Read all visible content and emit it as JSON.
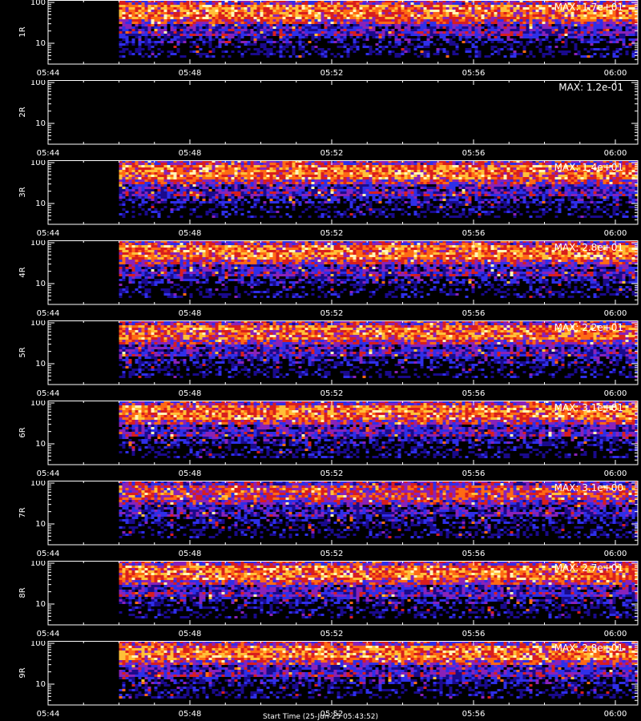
{
  "chart_data": {
    "type": "heatmap",
    "description_colors": {
      "scale": [
        "#000000",
        "#1a0a8c",
        "#2f2fe8",
        "#8a22b8",
        "#d81e1e",
        "#ff6a14",
        "#ffc038",
        "#fff6b8"
      ],
      "axis": "#ffffff",
      "background": "#000000"
    },
    "x_ticks": [
      "05:44",
      "05:48",
      "05:52",
      "05:56",
      "06:00"
    ],
    "y_ticks": [
      "100",
      "10"
    ],
    "y_scale": "log",
    "ylim": [
      3,
      110
    ],
    "data_start": "05:46",
    "x_title": "Start Time (25-Jun-25 05:43:52)",
    "panels": [
      {
        "label": "1R",
        "max_text": "MAX: 1.7e+01",
        "level": 0.85
      },
      {
        "label": "2R",
        "max_text": "MAX: 1.2e-01",
        "level": 0.0
      },
      {
        "label": "3R",
        "max_text": "MAX: 1.4e+01",
        "level": 0.85
      },
      {
        "label": "4R",
        "max_text": "MAX: 2.8e+01",
        "level": 0.85
      },
      {
        "label": "5R",
        "max_text": "MAX: 2.2e+01",
        "level": 0.82
      },
      {
        "label": "6R",
        "max_text": "MAX: 3.1e+01",
        "level": 0.85
      },
      {
        "label": "7R",
        "max_text": "MAX: 3.1e+00",
        "level": 0.7
      },
      {
        "label": "8R",
        "max_text": "MAX: 2.7e+01",
        "level": 0.85
      },
      {
        "label": "9R",
        "max_text": "MAX: 2.8e+01",
        "level": 0.85
      }
    ]
  }
}
